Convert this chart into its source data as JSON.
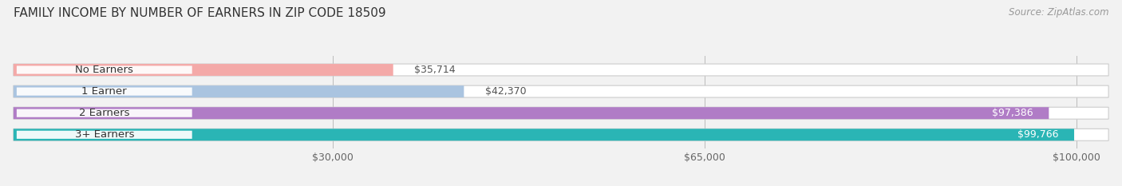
{
  "title": "FAMILY INCOME BY NUMBER OF EARNERS IN ZIP CODE 18509",
  "source": "Source: ZipAtlas.com",
  "categories": [
    "No Earners",
    "1 Earner",
    "2 Earners",
    "3+ Earners"
  ],
  "values": [
    35714,
    42370,
    97386,
    99766
  ],
  "bar_colors": [
    "#f4a9a8",
    "#aac4e0",
    "#b07cc6",
    "#2ab5b5"
  ],
  "value_labels": [
    "$35,714",
    "$42,370",
    "$97,386",
    "$99,766"
  ],
  "x_ticks": [
    30000,
    65000,
    100000
  ],
  "x_tick_labels": [
    "$30,000",
    "$65,000",
    "$100,000"
  ],
  "xlim_max": 103000,
  "bar_height": 0.55,
  "background_color": "#f2f2f2",
  "title_fontsize": 11,
  "source_fontsize": 8.5,
  "label_fontsize": 9.5,
  "value_fontsize": 9,
  "tick_fontsize": 9,
  "value_threshold": 60000
}
